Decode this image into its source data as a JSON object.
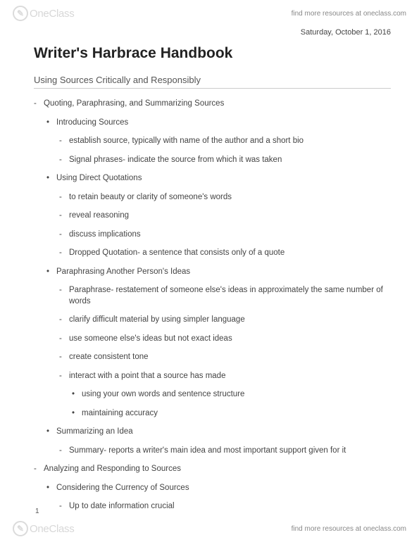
{
  "header": {
    "logo_text_one": "One",
    "logo_text_class": "Class",
    "resources_text": "find more resources at oneclass.com"
  },
  "footer": {
    "logo_text_one": "One",
    "logo_text_class": "Class",
    "resources_text": "find more resources at oneclass.com"
  },
  "date": "Saturday, October 1, 2016",
  "title": "Writer's Harbrace Handbook",
  "subtitle": "Using Sources Critically and Responsibly",
  "page_number": "1",
  "outline": {
    "s1": {
      "label": "Quoting, Paraphrasing, and Summarizing Sources",
      "a": {
        "label": "Introducing Sources",
        "i": "establish source, typically with name of the author and a short bio",
        "ii": "Signal phrases- indicate the source from which it was taken"
      },
      "b": {
        "label": "Using Direct Quotations",
        "i": "to retain beauty or clarity of someone's words",
        "ii": "reveal reasoning",
        "iii": "discuss implications",
        "iv": "Dropped Quotation- a sentence that consists only of a quote"
      },
      "c": {
        "label": "Paraphrasing Another Person's Ideas",
        "i": "Paraphrase- restatement of someone else's ideas in approximately the same number of words",
        "ii": "clarify difficult material by using simpler language",
        "iii": "use someone else's ideas but not exact ideas",
        "iv": "create consistent tone",
        "v": {
          "label": "interact with a point that a source has made",
          "x": "using your own words and sentence structure",
          "y": "maintaining accuracy"
        }
      },
      "d": {
        "label": "Summarizing an Idea",
        "i": "Summary- reports a writer's main idea and most important support given for it"
      }
    },
    "s2": {
      "label": "Analyzing and Responding to Sources",
      "a": {
        "label": "Considering the Currency of Sources",
        "i": "Up to date information crucial"
      }
    }
  }
}
